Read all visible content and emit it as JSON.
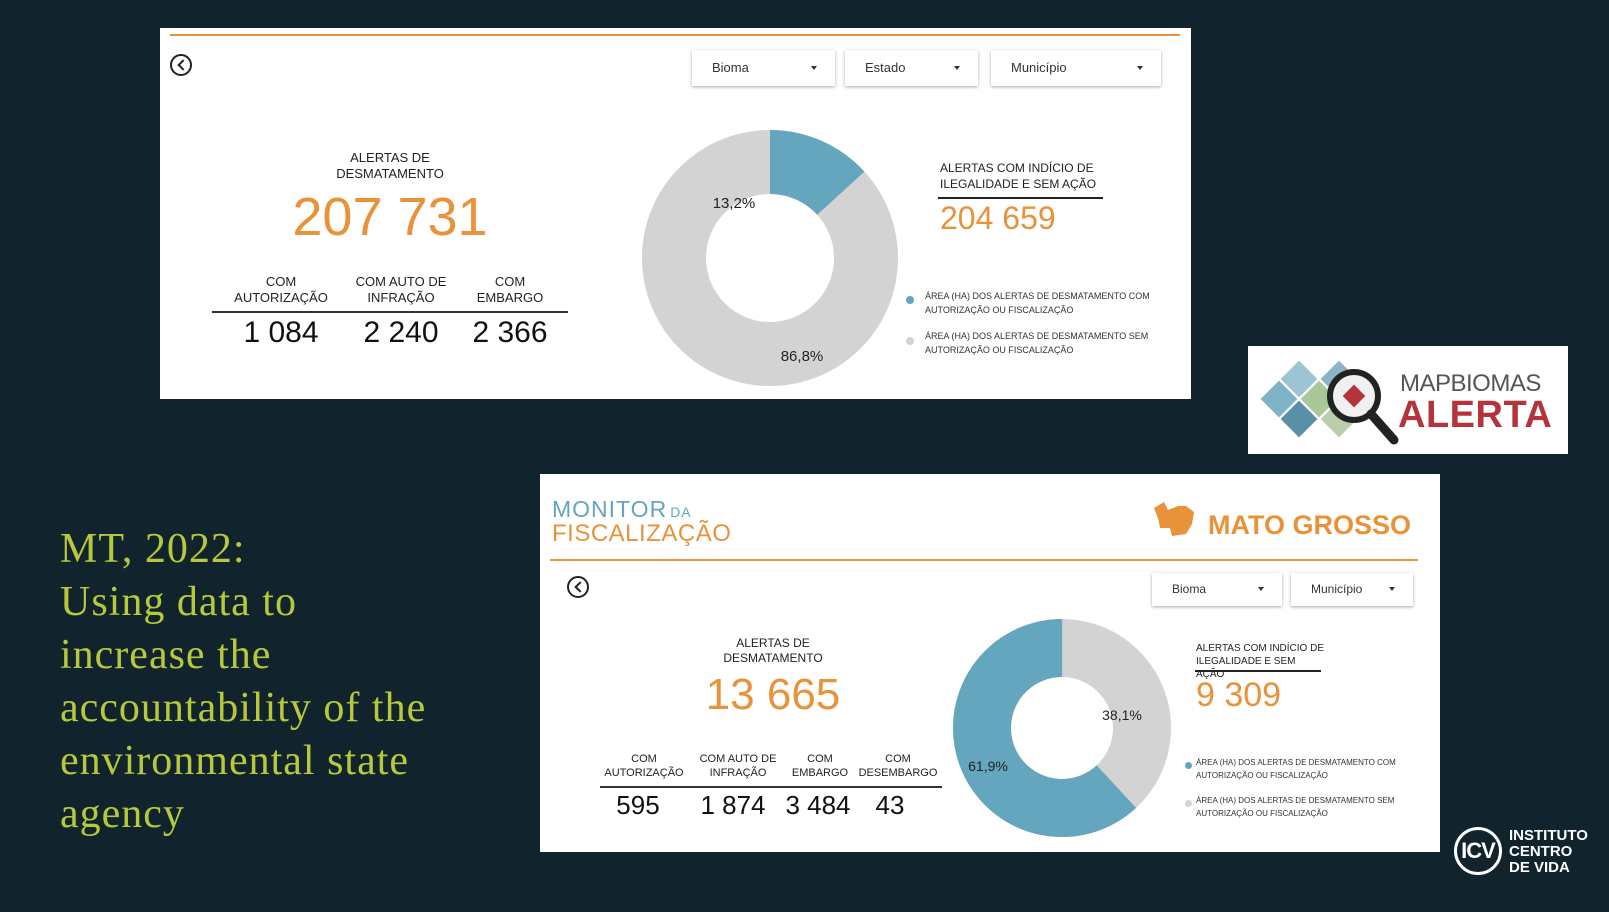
{
  "slide": {
    "heading_lines": [
      "MT, 2022:",
      "Using data to",
      "increase the",
      "accountability of the",
      "environmental state",
      "agency"
    ]
  },
  "top_panel": {
    "dropdowns": [
      "Bioma",
      "Estado",
      "Município"
    ],
    "total_label": "ALERTAS DE DESMATAMENTO",
    "total_value": "207 731",
    "sub_stats": [
      {
        "label": "COM AUTORIZAÇÃO",
        "value": "1 084"
      },
      {
        "label": "COM AUTO DE INFRAÇÃO",
        "value": "2 240"
      },
      {
        "label": "COM EMBARGO",
        "value": "2 366"
      }
    ],
    "donut": {
      "with_pct": 13.2,
      "without_pct": 86.8,
      "with_label": "13,2%",
      "without_label": "86,8%"
    },
    "illegal_label": "ALERTAS COM INDÍCIO DE ILEGALIDADE E SEM AÇÃO",
    "illegal_value": "204 659",
    "legend": [
      "ÁREA (HA) DOS ALERTAS DE DESMATAMENTO COM AUTORIZAÇÃO OU FISCALIZAÇÃO",
      "ÁREA (HA) DOS ALERTAS DE DESMATAMENTO SEM AUTORIZAÇÃO OU FISCALIZAÇÃO"
    ]
  },
  "logo_mapbiomas": {
    "line1": "MAPBIOMAS",
    "line2": "ALERTA"
  },
  "bottom_panel": {
    "brand_line1": "MONITOR",
    "brand_line1_small": "DA",
    "brand_line2": "FISCALIZAÇÃO",
    "state_title": "MATO GROSSO",
    "dropdowns": [
      "Bioma",
      "Município"
    ],
    "total_label": "ALERTAS DE DESMATAMENTO",
    "total_value": "13 665",
    "sub_stats": [
      {
        "label": "COM AUTORIZAÇÃO",
        "value": "595"
      },
      {
        "label": "COM AUTO DE INFRAÇÃO",
        "value": "1 874"
      },
      {
        "label": "COM EMBARGO",
        "value": "3 484"
      },
      {
        "label": "COM DESEMBARGO",
        "value": "43"
      }
    ],
    "donut": {
      "with_pct": 61.9,
      "without_pct": 38.1,
      "with_label": "61,9%",
      "without_label": "38,1%"
    },
    "illegal_label": "ALERTAS COM INDÍCIO DE ILEGALIDADE E SEM AÇÃO",
    "illegal_value": "9 309",
    "legend": [
      "ÁREA (HA) DOS ALERTAS DE DESMATAMENTO COM AUTORIZAÇÃO OU FISCALIZAÇÃO",
      "ÁREA (HA) DOS ALERTAS DE DESMATAMENTO SEM AUTORIZAÇÃO OU FISCALIZAÇÃO"
    ]
  },
  "logo_icv": {
    "mark": "ICV",
    "line1": "INSTITUTO",
    "line2": "CENTRO",
    "line3": "DE VIDA"
  },
  "colors": {
    "blue": "#64a6bd",
    "grey": "#d3d3d3",
    "orange": "#e8923a",
    "heading": "#b7c93a"
  }
}
